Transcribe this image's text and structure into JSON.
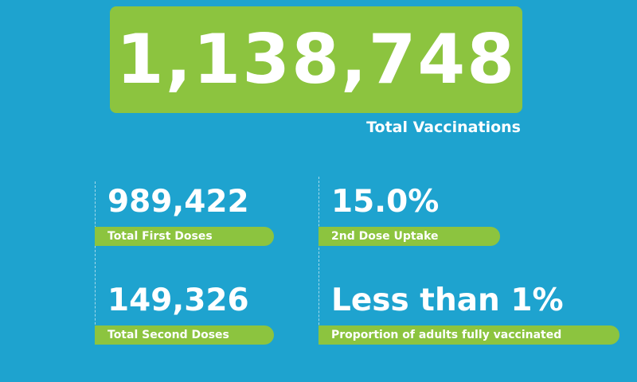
{
  "total": {
    "value": "1,138,748",
    "label": "Total Vaccinations"
  },
  "stats": [
    {
      "value": "989,422",
      "label": "Total First Doses"
    },
    {
      "value": "15.0%",
      "label": "2nd Dose Uptake"
    },
    {
      "value": "149,326",
      "label": "Total Second Doses"
    },
    {
      "value": "Less than 1%",
      "label": "Proportion of adults fully vaccinated"
    }
  ],
  "colors": {
    "background": "#1ea3cf",
    "accent": "#8cc43f",
    "text": "#ffffff"
  }
}
